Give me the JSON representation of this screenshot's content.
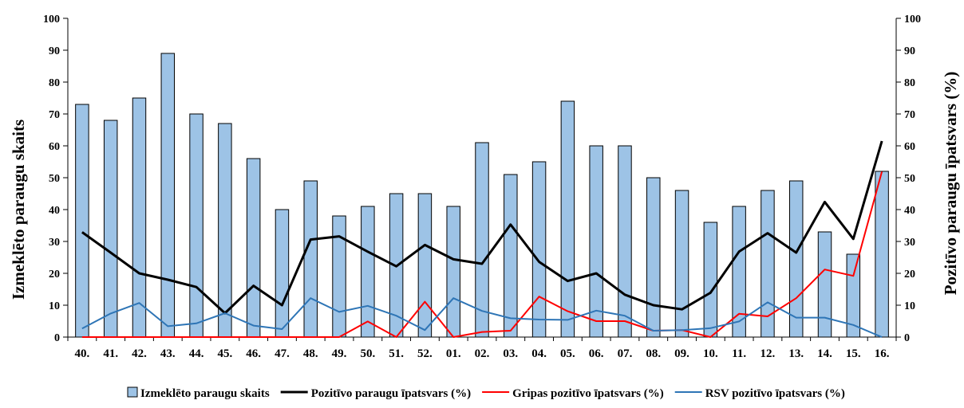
{
  "chart_data": {
    "type": "bar",
    "categories": [
      "40.",
      "41.",
      "42.",
      "43.",
      "44.",
      "45.",
      "46.",
      "47.",
      "48.",
      "49.",
      "50.",
      "51.",
      "52.",
      "01.",
      "02.",
      "03.",
      "04.",
      "05.",
      "06.",
      "07.",
      "08.",
      "09.",
      "10.",
      "11.",
      "12.",
      "13.",
      "14.",
      "15.",
      "16."
    ],
    "y_left_label": "Izmeklēto paraugu skaits",
    "y_right_label": "Pozitīvo paraugu īpatsvars (%)",
    "y_left_lim": [
      0,
      100
    ],
    "y_right_lim": [
      0,
      100
    ],
    "y_ticks": [
      0,
      10,
      20,
      30,
      40,
      50,
      60,
      70,
      80,
      90,
      100
    ],
    "grid": false,
    "legend_position": "bottom",
    "series": [
      {
        "name": "Izmeklēto paraugu skaits",
        "type": "bar",
        "axis": "left",
        "color": "#9dc3e6",
        "values": [
          73,
          68,
          75,
          89,
          70,
          67,
          56,
          40,
          49,
          38,
          41,
          45,
          45,
          41,
          61,
          51,
          55,
          74,
          60,
          60,
          50,
          46,
          36,
          41,
          46,
          49,
          33,
          26,
          52
        ]
      },
      {
        "name": "Pozitīvo paraugu īpatsvars (%)",
        "type": "line",
        "axis": "right",
        "color": "#000000",
        "values": [
          32.9,
          26.5,
          20.0,
          18.0,
          15.7,
          7.5,
          16.1,
          10.0,
          30.6,
          31.6,
          26.8,
          22.2,
          28.9,
          24.4,
          23.0,
          35.3,
          23.6,
          17.6,
          20.0,
          13.3,
          10.0,
          8.7,
          13.9,
          26.8,
          32.6,
          26.5,
          42.4,
          30.8,
          61.5
        ]
      },
      {
        "name": "Gripas pozitīvo  īpatsvars (%)",
        "type": "line",
        "axis": "right",
        "color": "#ff0000",
        "values": [
          0,
          0,
          0,
          0,
          0,
          0,
          0,
          0,
          0,
          0,
          4.9,
          0,
          11.1,
          0,
          1.6,
          2.0,
          12.7,
          8.1,
          5.0,
          5.0,
          2.0,
          2.2,
          0,
          7.3,
          6.5,
          12.2,
          21.2,
          19.2,
          51.9
        ]
      },
      {
        "name": "RSV pozitīvo īpatsvars (%)",
        "type": "line",
        "axis": "right",
        "color": "#2e75b6",
        "values": [
          2.7,
          7.4,
          10.7,
          3.4,
          4.3,
          7.5,
          3.6,
          2.5,
          12.2,
          7.9,
          9.8,
          6.7,
          2.2,
          12.2,
          8.2,
          5.9,
          5.5,
          5.4,
          8.3,
          6.7,
          2.0,
          2.2,
          2.8,
          4.9,
          10.9,
          6.1,
          6.1,
          3.8,
          0
        ]
      }
    ]
  }
}
